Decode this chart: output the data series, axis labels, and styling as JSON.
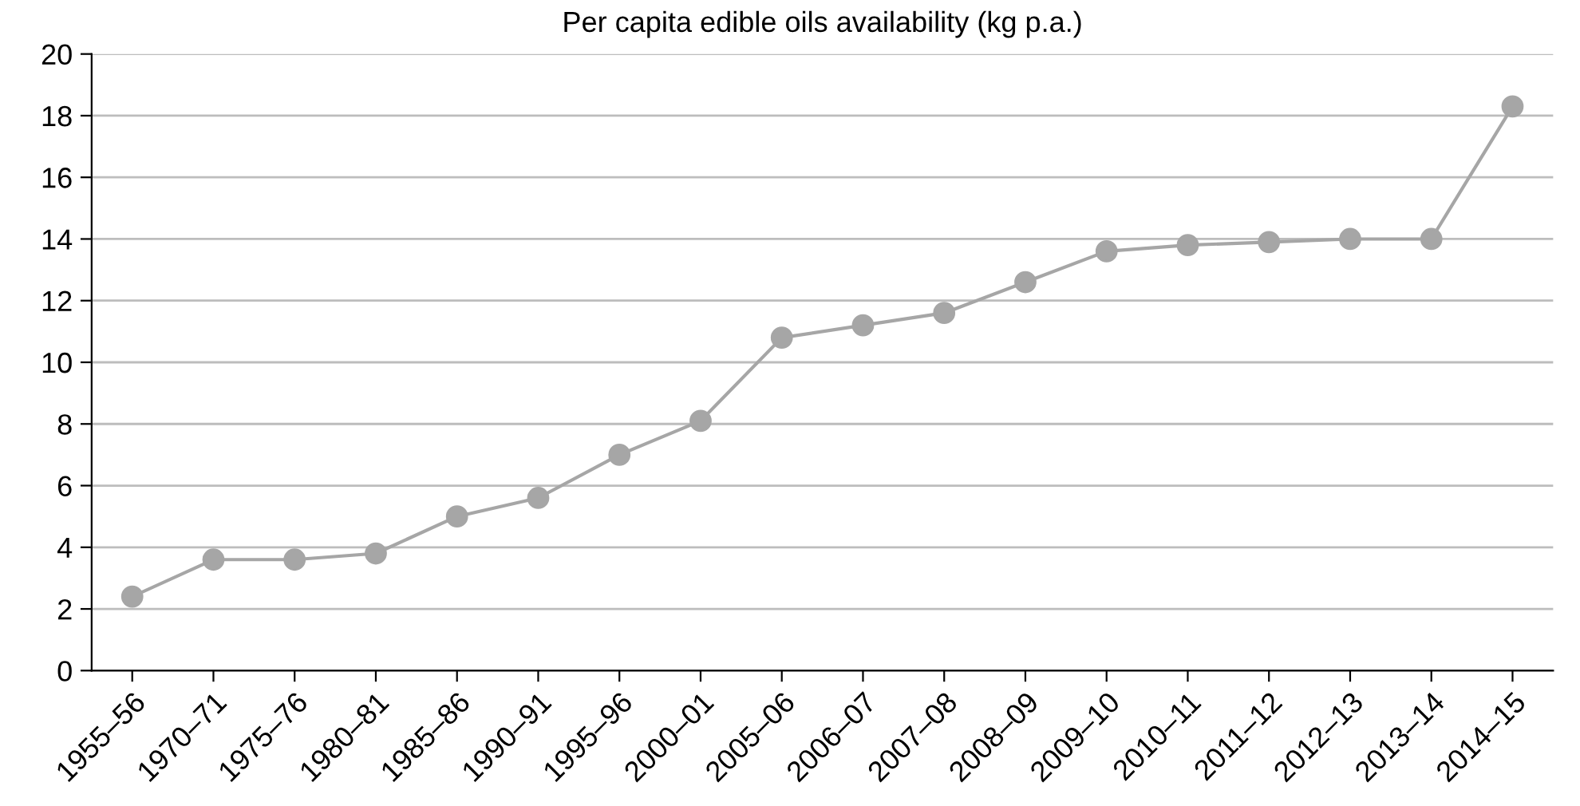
{
  "chart_data": {
    "type": "line",
    "title": "Per capita edible oils availability (kg p.a.)",
    "categories": [
      "1955–56",
      "1970–71",
      "1975–76",
      "1980–81",
      "1985–86",
      "1990–91",
      "1995–96",
      "2000–01",
      "2005–06",
      "2006–07",
      "2007–08",
      "2008–09",
      "2009–10",
      "2010–11",
      "2011–12",
      "2012–13",
      "2013–14",
      "2014–15"
    ],
    "series": [
      {
        "color": "#a6a6a6",
        "values": [
          2.4,
          3.6,
          3.6,
          3.8,
          5.0,
          5.6,
          7.0,
          8.1,
          10.8,
          11.2,
          11.6,
          12.6,
          13.6,
          13.8,
          13.9,
          14.0,
          14.0,
          18.3
        ]
      }
    ],
    "ylim": [
      0,
      20
    ],
    "yticks": [
      0,
      2,
      4,
      6,
      8,
      10,
      12,
      14,
      16,
      18,
      20
    ],
    "grid": "y",
    "marker": "circle",
    "line_style": "solid"
  }
}
